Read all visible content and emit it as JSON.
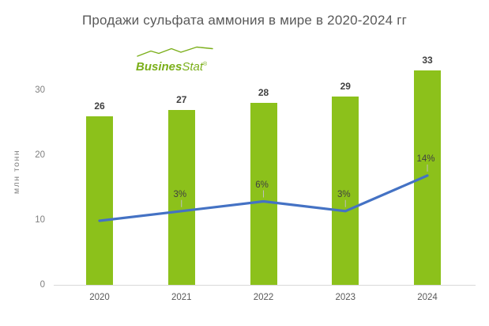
{
  "title": "Продажи сульфата аммония в мире в 2020-2024 гг",
  "logo": {
    "bold": "Busines",
    "light": "Stat",
    "registered": "®"
  },
  "y_axis": {
    "title": "млн тонн",
    "ticks": [
      0,
      10,
      20,
      30
    ]
  },
  "colors": {
    "bar": "#8CC11B",
    "line": "#4472C4",
    "title_text": "#595959",
    "bar_label": "#404040",
    "pct_label": "#404040",
    "axis_line": "#D9D9D9",
    "leader_line": "#BFBFBF",
    "y_tick": "#7F7F7F",
    "x_tick": "#595959",
    "logo_green": "#7BAF1A"
  },
  "chart_data": {
    "type": "bar",
    "subtype": "bar-line-combo",
    "title": "Продажи сульфата аммония в мире в 2020-2024 гг",
    "categories": [
      "2020",
      "2021",
      "2022",
      "2023",
      "2024"
    ],
    "series": [
      {
        "name": "bars",
        "type": "bar",
        "values": [
          26,
          27,
          28,
          29,
          33
        ],
        "data_labels": [
          "26",
          "27",
          "28",
          "29",
          "33"
        ],
        "color": "#8CC11B",
        "axis": "primary"
      },
      {
        "name": "growth-line",
        "type": "line",
        "values": [
          0,
          3,
          6,
          3,
          14
        ],
        "data_labels": [
          "",
          "3%",
          "6%",
          "3%",
          "14%"
        ],
        "color": "#4472C4",
        "axis": "secondary"
      }
    ],
    "xlabel": "",
    "ylabel": "млн тонн",
    "ylim": [
      0,
      35
    ],
    "yticks": [
      0,
      10,
      20,
      30
    ],
    "grid": false,
    "legend": false
  }
}
